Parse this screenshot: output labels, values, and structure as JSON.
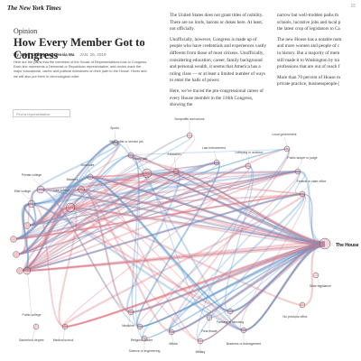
{
  "header": {
    "logo": "The New York Times",
    "share_count": "15"
  },
  "article": {
    "section": "Opinion",
    "title": "How Every Member Got to Congress",
    "byline": "By Sahil Chinoy and Jessia Ma",
    "date": "JAN. 26, 2019",
    "intro": "Here are the paths that the members of the House of Representatives took to Congress. Each line represents a Democrat or Republican representative, and circles mark the major educational, career and political milestones on their path to the House. Hover and we will also put them in chronological order.",
    "column1": [
      "The United States does not grant titles of nobility. There are no lords, barons or dukes here. At least, not officially.",
      "Unofficially, however, Congress is made up of people who have credentials and experiences vastly different from those of most citizens. Unofficially, considering education, career, family background and personal wealth, it seems that America has a ruling class — or at least a limited number of ways to enter the halls of power.",
      "Here, we've traced the pre-congressional career of every House member in the 116th Congress, showing the"
    ],
    "column2": [
      [
        "narrow but well-trodden paths th",
        "schools, lucrative jobs and local p",
        "the latest crop of legislators to Ca"
      ],
      [
        "The new House has a notable num",
        "and more women and people of c",
        "in history. But a majority of mem",
        "still made it to Washington by tra",
        "professions that are out of reach f"
      ],
      [
        "More than 70 percent of House m",
        "private practice, businesspeople ("
      ]
    ]
  },
  "diagram": {
    "search_placeholder": "Find a representative",
    "nodes": [
      {
        "label": "Nonprofits and unions"
      },
      {
        "label": "Sports"
      },
      {
        "label": "Law enforcement"
      },
      {
        "label": "Lobbying or activism"
      },
      {
        "label": "Local government"
      },
      {
        "label": "Blue-collar or service job"
      },
      {
        "label": "Private law"
      },
      {
        "label": "Education"
      },
      {
        "label": "Public lawyer or judge"
      },
      {
        "label": "Federal or state office"
      },
      {
        "label": "Doctorate"
      },
      {
        "label": "Master's"
      },
      {
        "label": "Private college"
      },
      {
        "label": "Elite college"
      },
      {
        "label": "Law school"
      },
      {
        "label": "Public college"
      },
      {
        "label": "Bachelor's degree"
      },
      {
        "label": "Medical school"
      },
      {
        "label": "Medicine"
      },
      {
        "label": "Religious leader"
      },
      {
        "label": "Science or engineering"
      },
      {
        "label": "Media"
      },
      {
        "label": "Military"
      },
      {
        "label": "Real estate"
      },
      {
        "label": "Farming or ranching"
      },
      {
        "label": "Business or management"
      },
      {
        "label": "No previous office"
      },
      {
        "label": "State legislature"
      },
      {
        "label": "The House"
      }
    ]
  }
}
